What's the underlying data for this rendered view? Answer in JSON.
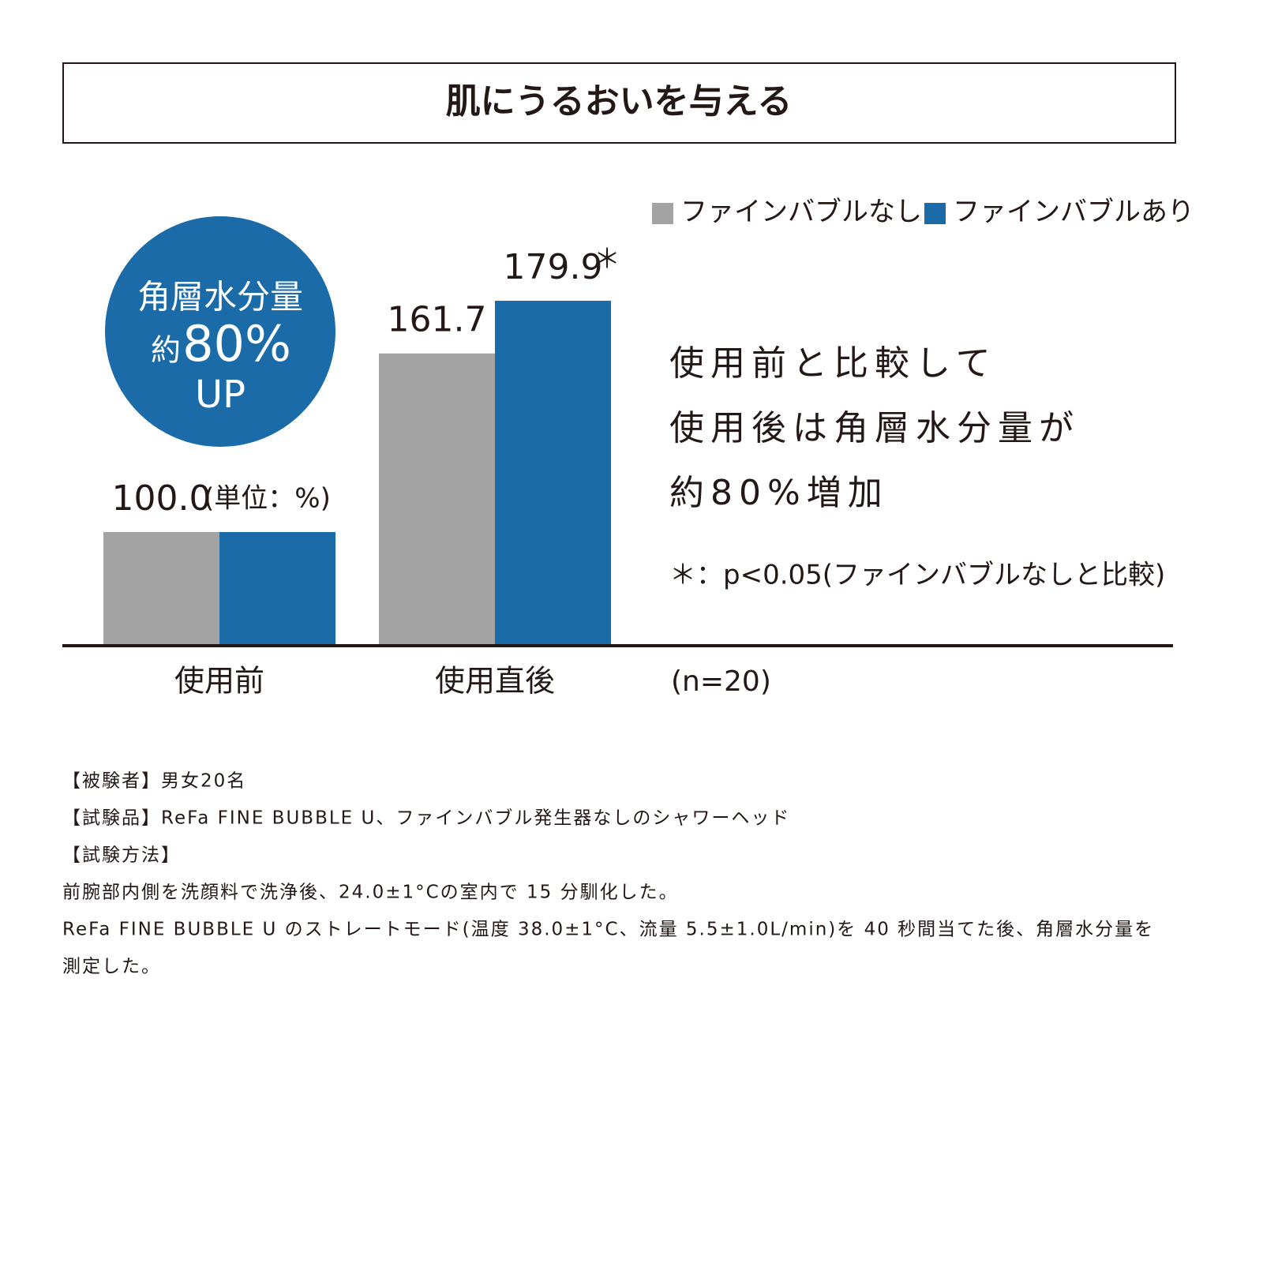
{
  "chart_data": {
    "type": "bar",
    "title": "肌にうるおいを与える",
    "categories": [
      "使用前",
      "使用直後"
    ],
    "series": [
      {
        "name": "ファインバブルなし",
        "color": "#a3a3a3",
        "values": [
          100.0,
          161.7
        ],
        "value_labels": [
          "100.0",
          "161.7"
        ]
      },
      {
        "name": "ファインバブルあり",
        "color": "#1b6ba9",
        "values": [
          100.0,
          179.9
        ],
        "value_labels": [
          null,
          "179.9"
        ]
      }
    ],
    "unit_note": "(単位：%)",
    "significance_marker": "＊",
    "sample_size": "(n=20)",
    "badge": {
      "line1": "角層水分量",
      "prefix": "約",
      "highlight": "80%",
      "line3": "UP"
    },
    "description": [
      "使用前と比較して",
      "使用後は角層水分量が",
      "約80%増加"
    ],
    "footnote": "＊：p<0.05(ファインバブルなしと比較)"
  },
  "notes": [
    "【被験者】男女20名",
    "【試験品】ReFa FINE BUBBLE U、ファインバブル発生器なしのシャワーヘッド",
    "【試験方法】",
    "前腕部内側を洗顔料で洗浄後、24.0±1°Cの室内で 15 分馴化した。",
    "ReFa FINE BUBBLE U のストレートモード(温度 38.0±1°C、流量 5.5±1.0L/min)を 40 秒間当てた後、角層水分量を",
    "測定した。"
  ]
}
